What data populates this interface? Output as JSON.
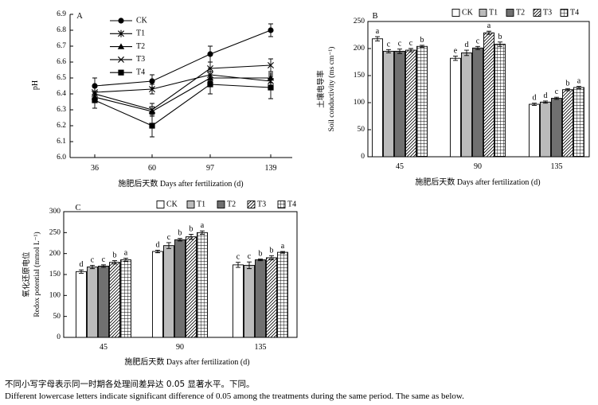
{
  "colors": {
    "axis": "#000000",
    "CK": "#ffffff",
    "T1": "#bbbbbb",
    "T2": "#707070",
    "T3": "hatch-diagonal",
    "T4": "hatch-grid"
  },
  "chart_data": [
    {
      "id": "A",
      "type": "line",
      "panel_label": "A",
      "xlabel": "施肥后天数 Days after fertilization (d)",
      "ylabel": "pH",
      "x": [
        36,
        60,
        97,
        139
      ],
      "x_tick_labels": [
        "36",
        "60",
        "97",
        "139"
      ],
      "ylim": [
        6.0,
        6.9
      ],
      "y_ticks": [
        "6.0",
        "6.1",
        "6.2",
        "6.3",
        "6.4",
        "6.5",
        "6.6",
        "6.7",
        "6.8",
        "6.9"
      ],
      "legend": [
        "CK",
        "T1",
        "T2",
        "T3",
        "T4"
      ],
      "series": [
        {
          "name": "CK",
          "marker": "filled-circle",
          "values": [
            6.45,
            6.48,
            6.65,
            6.8
          ],
          "errors": [
            0.05,
            0.04,
            0.05,
            0.04
          ]
        },
        {
          "name": "T1",
          "marker": "asterisk",
          "values": [
            6.41,
            6.43,
            6.52,
            6.48
          ],
          "errors": [
            0.04,
            0.03,
            0.04,
            0.04
          ]
        },
        {
          "name": "T2",
          "marker": "filled-triangle",
          "values": [
            6.38,
            6.29,
            6.5,
            6.5
          ],
          "errors": [
            0.03,
            0.03,
            0.04,
            0.03
          ]
        },
        {
          "name": "T3",
          "marker": "x",
          "values": [
            6.4,
            6.3,
            6.56,
            6.58
          ],
          "errors": [
            0.04,
            0.04,
            0.04,
            0.04
          ]
        },
        {
          "name": "T4",
          "marker": "filled-square",
          "values": [
            6.36,
            6.2,
            6.46,
            6.44
          ],
          "errors": [
            0.05,
            0.07,
            0.06,
            0.07
          ]
        }
      ]
    },
    {
      "id": "B",
      "type": "bar",
      "panel_label": "B",
      "xlabel": "施肥后天数 Days after fertilization (d)",
      "ylabel_zh": "土壤电导率",
      "ylabel_en": "Soil conductivity (ms cm⁻¹)",
      "categories": [
        "45",
        "90",
        "135"
      ],
      "ylim": [
        0,
        250
      ],
      "y_ticks": [
        "0",
        "50",
        "100",
        "150",
        "200",
        "250"
      ],
      "legend": [
        "CK",
        "T1",
        "T2",
        "T3",
        "T4"
      ],
      "series": [
        {
          "name": "CK",
          "values": [
            218,
            182,
            97
          ],
          "errors": [
            4,
            4,
            2
          ],
          "letters": [
            "a",
            "e",
            "d"
          ]
        },
        {
          "name": "T1",
          "values": [
            195,
            192,
            101
          ],
          "errors": [
            3,
            5,
            2
          ],
          "letters": [
            "c",
            "d",
            "d"
          ]
        },
        {
          "name": "T2",
          "values": [
            195,
            201,
            108
          ],
          "errors": [
            4,
            3,
            2
          ],
          "letters": [
            "c",
            "c",
            "c"
          ]
        },
        {
          "name": "T3",
          "values": [
            197,
            229,
            124
          ],
          "errors": [
            3,
            3,
            2
          ],
          "letters": [
            "c",
            "a",
            "b"
          ]
        },
        {
          "name": "T4",
          "values": [
            204,
            208,
            128
          ],
          "errors": [
            2,
            4,
            2
          ],
          "letters": [
            "b",
            "b",
            "a"
          ]
        }
      ]
    },
    {
      "id": "C",
      "type": "bar",
      "panel_label": "C",
      "xlabel": "施肥后天数 Days after fertilization (d)",
      "ylabel_zh": "氧化还原电位",
      "ylabel_en": "Redox potential (mmol L⁻¹)",
      "categories": [
        "45",
        "90",
        "135"
      ],
      "ylim": [
        0,
        300
      ],
      "y_ticks": [
        "0",
        "50",
        "100",
        "150",
        "200",
        "250",
        "300"
      ],
      "legend": [
        "CK",
        "T1",
        "T2",
        "T3",
        "T4"
      ],
      "series": [
        {
          "name": "CK",
          "values": [
            157,
            205,
            173
          ],
          "errors": [
            4,
            3,
            6
          ],
          "letters": [
            "d",
            "d",
            "c"
          ]
        },
        {
          "name": "T1",
          "values": [
            168,
            219,
            172
          ],
          "errors": [
            4,
            7,
            8
          ],
          "letters": [
            "c",
            "c",
            "c"
          ]
        },
        {
          "name": "T2",
          "values": [
            170,
            233,
            185
          ],
          "errors": [
            3,
            3,
            2
          ],
          "letters": [
            "c",
            "b",
            "b"
          ]
        },
        {
          "name": "T3",
          "values": [
            179,
            240,
            190
          ],
          "errors": [
            4,
            6,
            5
          ],
          "letters": [
            "b",
            "b",
            "b"
          ]
        },
        {
          "name": "T4",
          "values": [
            185,
            250,
            203
          ],
          "errors": [
            4,
            4,
            2
          ],
          "letters": [
            "a",
            "a",
            "a"
          ]
        }
      ]
    }
  ],
  "caption": {
    "zh": "不同小写字母表示同一时期各处理间差异达 0.05 显著水平。下同。",
    "en": "Different lowercase letters indicate significant difference of 0.05 among the treatments during the same period. The same as below."
  }
}
